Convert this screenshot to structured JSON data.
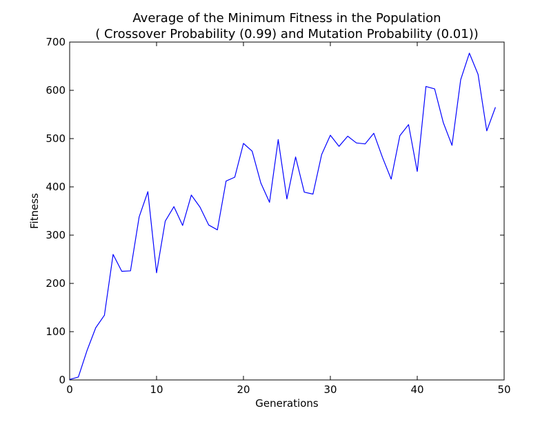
{
  "chart_data": {
    "type": "line",
    "title": "Average of the Minimum Fitness in the Population",
    "subtitle": "( Crossover Probability (0.99) and Mutation Probability (0.01))",
    "xlabel": "Generations",
    "ylabel": "Fitness",
    "xlim": [
      0,
      50
    ],
    "ylim": [
      0,
      700
    ],
    "xticks": [
      0,
      10,
      20,
      30,
      40,
      50
    ],
    "yticks": [
      0,
      100,
      200,
      300,
      400,
      500,
      600,
      700
    ],
    "grid": false,
    "series": [
      {
        "color": "#0000ff",
        "x": [
          0,
          1,
          2,
          3,
          4,
          5,
          6,
          7,
          8,
          9,
          10,
          11,
          12,
          13,
          14,
          15,
          16,
          17,
          18,
          19,
          20,
          21,
          22,
          23,
          24,
          25,
          26,
          27,
          28,
          29,
          30,
          31,
          32,
          33,
          34,
          35,
          36,
          37,
          38,
          39,
          40,
          41,
          42,
          43,
          44,
          45,
          46,
          47,
          48,
          49
        ],
        "y": [
          1,
          6,
          61,
          108,
          134,
          260,
          225,
          226,
          338,
          390,
          222,
          329,
          359,
          320,
          383,
          358,
          321,
          311,
          412,
          420,
          490,
          474,
          408,
          368,
          498,
          375,
          462,
          389,
          385,
          467,
          507,
          484,
          505,
          491,
          489,
          511,
          461,
          416,
          506,
          529,
          432,
          608,
          603,
          533,
          486,
          622,
          677,
          633,
          516,
          565
        ]
      }
    ]
  }
}
